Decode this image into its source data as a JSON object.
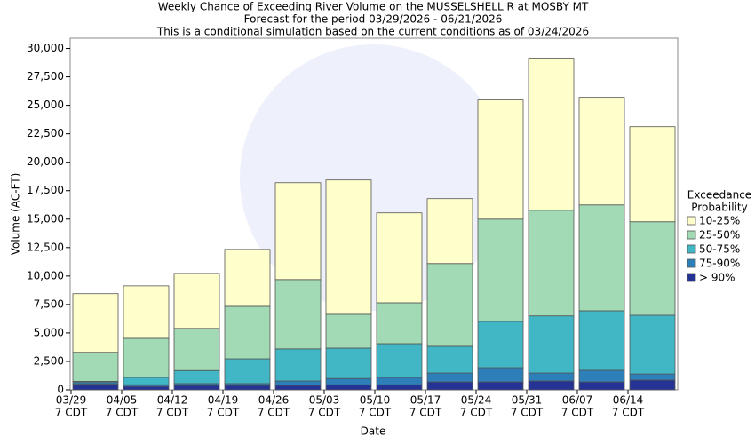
{
  "chart_data": {
    "type": "stacked_bar",
    "title": [
      "Weekly Chance of Exceeding River Volume on the MUSSELSHELL R at MOSBY MT",
      "Forecast for the period 03/29/2026 - 06/21/2026",
      "This is a conditional simulation based on the current conditions as of 03/24/2026"
    ],
    "x_label": "Date",
    "y_label": "Volume (AC-FT)",
    "legend_title": [
      "Exceedance",
      "Probability"
    ],
    "categories": [
      [
        "03/29",
        "7 CDT"
      ],
      [
        "04/05",
        "7 CDT"
      ],
      [
        "04/12",
        "7 CDT"
      ],
      [
        "04/19",
        "7 CDT"
      ],
      [
        "04/26",
        "7 CDT"
      ],
      [
        "05/03",
        "7 CDT"
      ],
      [
        "05/10",
        "7 CDT"
      ],
      [
        "05/17",
        "7 CDT"
      ],
      [
        "05/24",
        "7 CDT"
      ],
      [
        "05/31",
        "7 CDT"
      ],
      [
        "06/07",
        "7 CDT"
      ],
      [
        "06/14",
        "7 CDT"
      ]
    ],
    "series": [
      {
        "name": "> 90%",
        "color": "#253494",
        "values": [
          500,
          300,
          400,
          400,
          400,
          450,
          450,
          700,
          700,
          780,
          700,
          860
        ]
      },
      {
        "name": "75-90%",
        "color": "#2c7fb8",
        "values": [
          150,
          150,
          150,
          150,
          380,
          550,
          650,
          780,
          1250,
          700,
          1020,
          540
        ]
      },
      {
        "name": "50-75%",
        "color": "#41b6c4",
        "values": [
          100,
          650,
          1150,
          2180,
          2820,
          2670,
          2960,
          2350,
          4070,
          5020,
          5230,
          5160
        ]
      },
      {
        "name": "25-50%",
        "color": "#a1dab4",
        "values": [
          2550,
          3430,
          3700,
          4610,
          6090,
          2970,
          3590,
          7270,
          8980,
          9280,
          9300,
          8210
        ]
      },
      {
        "name": "10-25%",
        "color": "#ffffcc",
        "values": [
          5150,
          4610,
          4830,
          5000,
          8510,
          11800,
          7900,
          5700,
          10470,
          13360,
          9450,
          8350
        ]
      }
    ],
    "ylim": [
      0,
      30900
    ],
    "yticks": [
      0,
      {
        "value": 2500,
        "label": "2,500"
      },
      {
        "value": 5000,
        "label": "5,000"
      },
      {
        "value": 7500,
        "label": "7,500"
      },
      {
        "value": 10000,
        "label": "10,000"
      },
      {
        "value": 12500,
        "label": "12,500"
      },
      {
        "value": 15000,
        "label": "15,000"
      },
      {
        "value": 17500,
        "label": "17,500"
      },
      {
        "value": 20000,
        "label": "20,000"
      },
      {
        "value": 22500,
        "label": "22,500"
      },
      {
        "value": 25000,
        "label": "25,000"
      },
      {
        "value": 27500,
        "label": "27,500"
      },
      {
        "value": 30000,
        "label": "30,000"
      }
    ]
  }
}
